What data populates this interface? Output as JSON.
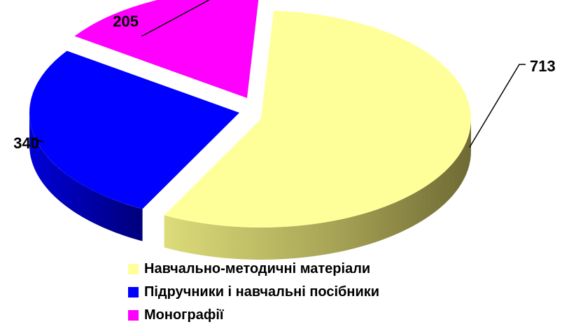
{
  "chart_data": {
    "type": "pie",
    "title": "",
    "categories": [
      "Навчально-методичні матеріали",
      "Підручники і навчальні посібники",
      "Монографії"
    ],
    "values": [
      713,
      340,
      205
    ],
    "data_labels": [
      "713",
      "340",
      "205"
    ],
    "colors": [
      "#ffff99",
      "#0000ff",
      "#ff00ff"
    ],
    "exploded": true,
    "style": "3d",
    "legend_position": "bottom"
  },
  "legend": {
    "items": [
      {
        "label": "Навчально-методичні матеріали",
        "color": "#ffff99"
      },
      {
        "label": "Підручники і навчальні посібники",
        "color": "#0000ff"
      },
      {
        "label": "Монографії",
        "color": "#ff00ff"
      }
    ]
  }
}
